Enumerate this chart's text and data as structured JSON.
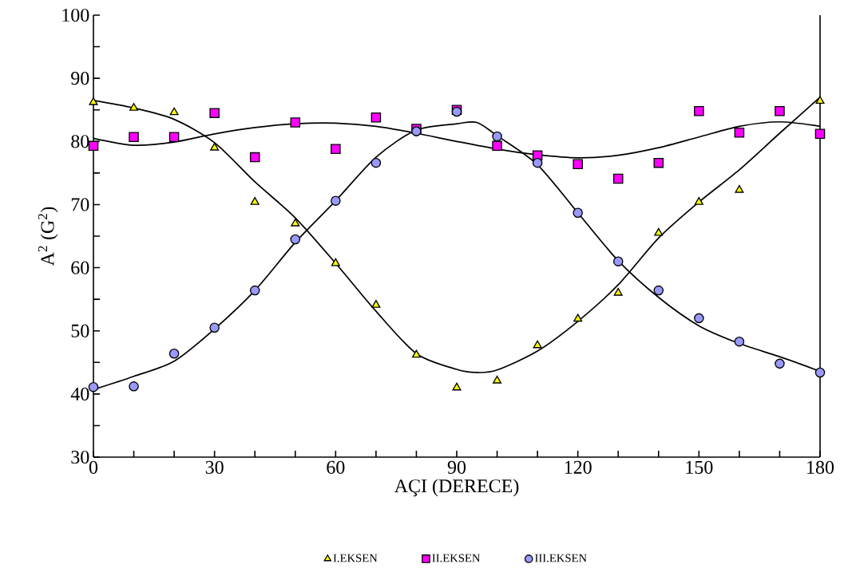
{
  "chart_data": {
    "type": "scatter",
    "xlabel": "AÇI (DERECE)",
    "ylabel": "A$^{2}$ (G$^{2}$)",
    "x": [
      0,
      10,
      20,
      30,
      40,
      50,
      60,
      70,
      80,
      90,
      100,
      110,
      120,
      130,
      140,
      150,
      160,
      170,
      180
    ],
    "series": [
      {
        "name": "I.EKSEN",
        "color": "#ffff00",
        "marker": "triangle",
        "values": [
          86.2,
          85.3,
          84.6,
          79.0,
          70.4,
          67.0,
          60.7,
          54.1,
          46.2,
          41.0,
          42.1,
          47.7,
          51.9,
          56.0,
          65.5,
          70.4,
          72.3,
          null,
          86.4
        ]
      },
      {
        "name": "II.EKSEN",
        "color": "#ff00ff",
        "marker": "square",
        "values": [
          79.3,
          80.7,
          80.7,
          84.5,
          77.5,
          83.0,
          78.8,
          83.8,
          82.0,
          85.0,
          79.3,
          77.8,
          76.4,
          74.1,
          76.6,
          84.8,
          81.4,
          84.8,
          81.2
        ]
      },
      {
        "name": "III.EKSEN",
        "color": "#9999ff",
        "marker": "circle",
        "values": [
          41.1,
          41.2,
          46.4,
          50.5,
          56.4,
          64.5,
          70.6,
          76.6,
          81.6,
          84.7,
          80.8,
          76.6,
          68.7,
          61.0,
          56.4,
          52.0,
          48.3,
          44.8,
          43.4
        ]
      },
      {
        "type": "line",
        "color": "#000000",
        "marker": "none",
        "line_style": "solid",
        "x": [
          0,
          10,
          20,
          30,
          40,
          50,
          60,
          70,
          80,
          90,
          95,
          100,
          110,
          120,
          130,
          140,
          150,
          160,
          170,
          180
        ],
        "values": [
          86.5,
          85.3,
          83.5,
          79.8,
          73.6,
          67.9,
          60.7,
          53.1,
          46.4,
          43.9,
          43.4,
          43.8,
          46.8,
          51.5,
          57.3,
          64.7,
          70.4,
          75.5,
          81.3,
          87.0
        ]
      },
      {
        "type": "line",
        "color": "#000000",
        "marker": "none",
        "line_style": "solid",
        "x": [
          0,
          10,
          20,
          30,
          40,
          50,
          60,
          70,
          80,
          90,
          100,
          110,
          120,
          130,
          140,
          150,
          160,
          170,
          180
        ],
        "values": [
          80.5,
          79.4,
          79.9,
          81.2,
          82.2,
          82.8,
          82.9,
          82.4,
          81.3,
          80.0,
          78.8,
          77.9,
          77.4,
          77.8,
          79.0,
          80.7,
          82.4,
          83.1,
          82.4
        ]
      },
      {
        "type": "line",
        "color": "#000000",
        "marker": "none",
        "line_style": "solid",
        "x": [
          0,
          10,
          20,
          30,
          40,
          50,
          60,
          70,
          80,
          90,
          95,
          100,
          110,
          120,
          130,
          140,
          150,
          160,
          170,
          180
        ],
        "values": [
          40.7,
          42.8,
          45.2,
          50.3,
          56.4,
          64.0,
          70.6,
          77.5,
          81.8,
          82.8,
          83.0,
          80.9,
          76.3,
          68.7,
          61.1,
          55.3,
          50.8,
          48.0,
          45.9,
          43.6
        ]
      }
    ],
    "xlim": [
      0,
      180
    ],
    "ylim": [
      30,
      100
    ],
    "xticks": [
      0,
      {
        "value": 10,
        "label": null
      },
      {
        "value": 20,
        "label": null
      },
      30,
      {
        "value": 40,
        "label": null
      },
      {
        "value": 50,
        "label": null
      },
      60,
      {
        "value": 70,
        "label": null
      },
      {
        "value": 80,
        "label": null
      },
      90,
      {
        "value": 100,
        "label": null
      },
      {
        "value": 110,
        "label": null
      },
      120,
      {
        "value": 130,
        "label": null
      },
      {
        "value": 140,
        "label": null
      },
      150,
      {
        "value": 160,
        "label": null
      },
      {
        "value": 170,
        "label": null
      },
      180
    ],
    "yticks": [
      30,
      {
        "value": 35,
        "label": null
      },
      40,
      {
        "value": 45,
        "label": null
      },
      50,
      {
        "value": 55,
        "label": null
      },
      60,
      {
        "value": 65,
        "label": null
      },
      70,
      {
        "value": 75,
        "label": null
      },
      80,
      {
        "value": 85,
        "label": null
      },
      90,
      {
        "value": 95,
        "label": null
      },
      100
    ],
    "legend": "bottom",
    "grid": false
  }
}
